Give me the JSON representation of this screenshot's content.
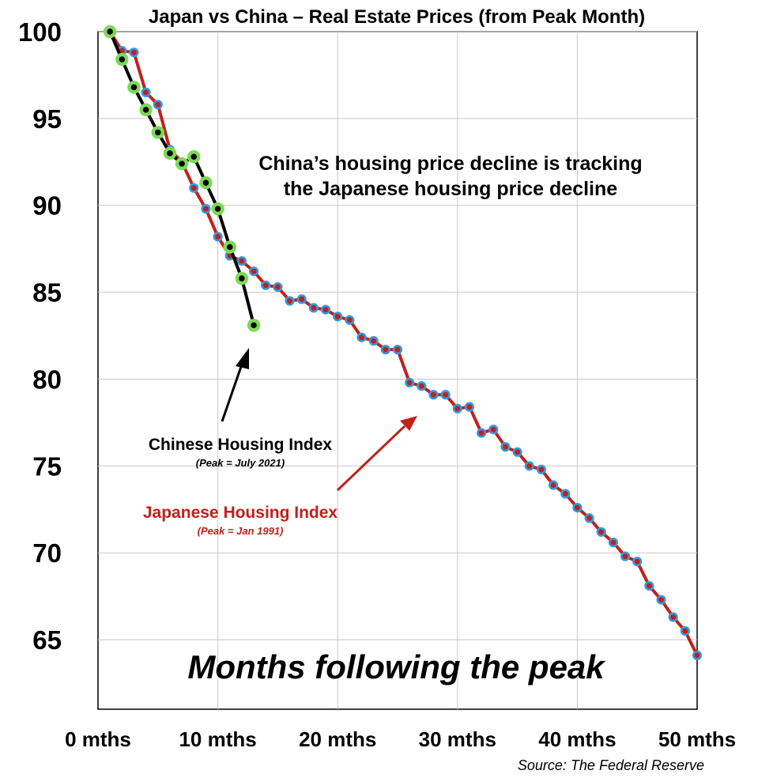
{
  "colors": {
    "china_line": "#000000",
    "china_marker": "#7ed957",
    "japan_line": "#c0211a",
    "japan_marker": "#2f9be3"
  },
  "chart_data": {
    "type": "line",
    "title": "Japan vs China – Real Estate Prices (from Peak Month)",
    "xlabel": "Months following the peak",
    "ylabel": "",
    "xlim": [
      0,
      50
    ],
    "ylim": [
      61,
      100
    ],
    "grid": true,
    "x_ticks": [
      0,
      10,
      20,
      30,
      40,
      50
    ],
    "x_tick_labels": [
      "0 mths",
      "10 mths",
      "20 mths",
      "30 mths",
      "40 mths",
      "50 mths"
    ],
    "y_ticks": [
      100,
      95,
      90,
      85,
      80,
      75,
      70,
      65
    ],
    "y_tick_labels": [
      "100",
      "95",
      "90",
      "85",
      "80",
      "75",
      "70",
      "65"
    ],
    "annotation": [
      "China’s housing price decline is tracking",
      "the Japanese housing price decline"
    ],
    "source": "Source: The Federal Reserve",
    "series": [
      {
        "name": "Japanese Housing Index",
        "note": "(Peak = Jan 1991)",
        "x": [
          1,
          2,
          3,
          4,
          5,
          6,
          7,
          8,
          9,
          10,
          11,
          12,
          13,
          14,
          15,
          16,
          17,
          18,
          19,
          20,
          21,
          22,
          23,
          24,
          25,
          26,
          27,
          28,
          29,
          30,
          31,
          32,
          33,
          34,
          35,
          36,
          37,
          38,
          39,
          40,
          41,
          42,
          43,
          44,
          45,
          46,
          47,
          48,
          49,
          50
        ],
        "values": [
          100,
          98.9,
          98.8,
          96.5,
          95.8,
          93.2,
          92.5,
          91.0,
          89.8,
          88.2,
          87.1,
          86.8,
          86.2,
          85.4,
          85.3,
          84.5,
          84.6,
          84.1,
          84.0,
          83.6,
          83.4,
          82.4,
          82.2,
          81.7,
          81.7,
          79.8,
          79.6,
          79.1,
          79.1,
          78.3,
          78.4,
          76.9,
          77.1,
          76.1,
          75.8,
          75.0,
          74.8,
          73.9,
          73.4,
          72.6,
          72.0,
          71.2,
          70.6,
          69.8,
          69.5,
          68.1,
          67.3,
          66.3,
          65.5,
          64.1
        ]
      },
      {
        "name": "Chinese Housing Index",
        "note": "(Peak = July 2021)",
        "x": [
          1,
          2,
          3,
          4,
          5,
          6,
          7,
          8,
          9,
          10,
          11,
          12,
          13
        ],
        "values": [
          100,
          98.4,
          96.8,
          95.5,
          94.2,
          93.0,
          92.4,
          92.8,
          91.3,
          89.8,
          87.6,
          85.8,
          83.1
        ]
      }
    ]
  }
}
